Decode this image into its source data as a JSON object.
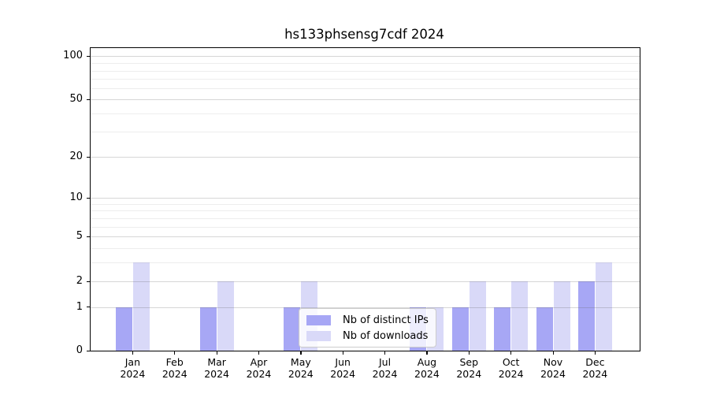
{
  "chart_data": {
    "type": "bar",
    "title": "hs133phsensg7cdf 2024",
    "categories": [
      "Jan 2024",
      "Feb 2024",
      "Mar 2024",
      "Apr 2024",
      "May 2024",
      "Jun 2024",
      "Jul 2024",
      "Aug 2024",
      "Sep 2024",
      "Oct 2024",
      "Nov 2024",
      "Dec 2024"
    ],
    "series": [
      {
        "name": "Nb of distinct IPs",
        "color": "#a7a7f5",
        "values": [
          1,
          0,
          1,
          0,
          1,
          0,
          0,
          1,
          1,
          1,
          1,
          2
        ]
      },
      {
        "name": "Nb of downloads",
        "color": "#d9d9f8",
        "values": [
          3,
          0,
          2,
          0,
          2,
          0,
          0,
          1,
          2,
          2,
          2,
          3
        ]
      }
    ],
    "xlabel": "",
    "ylabel": "",
    "yscale": "symlog",
    "ylim": [
      0,
      120
    ],
    "yticks_major": [
      0,
      1,
      2,
      5,
      10,
      20,
      50,
      100
    ],
    "yticks_minor": [
      3,
      4,
      6,
      7,
      8,
      9,
      30,
      40,
      60,
      70,
      80,
      90
    ],
    "grid": "on, drawn above bars; major light gray, minor lighter gray",
    "legend_position": "inside, lower center",
    "background_color": "#ffffff",
    "spine_color": "#000000"
  },
  "legend": {
    "items": [
      {
        "label": "Nb of distinct IPs",
        "color": "#a7a7f5"
      },
      {
        "label": "Nb of downloads",
        "color": "#d9d9f8"
      }
    ]
  }
}
